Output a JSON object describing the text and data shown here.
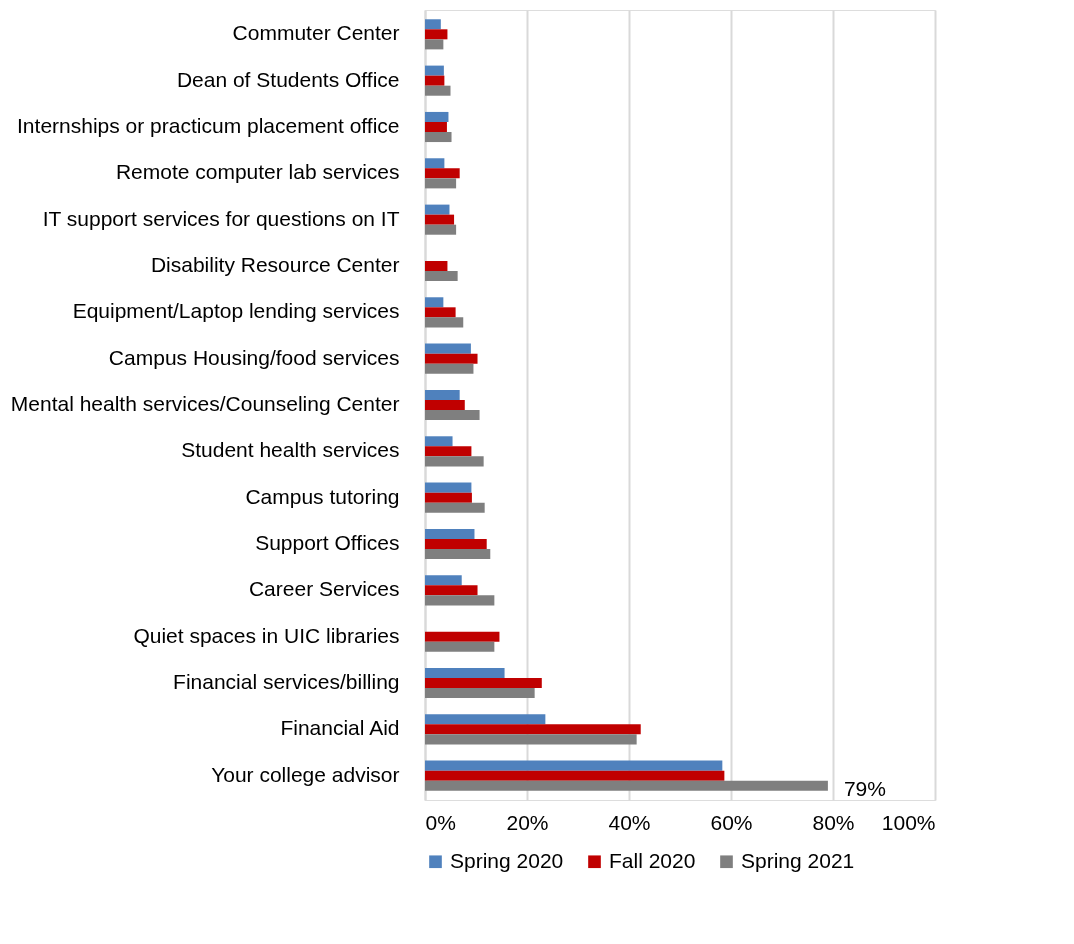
{
  "chart_data": {
    "type": "bar",
    "orientation": "horizontal",
    "categories": [
      "Commuter Center",
      "Dean of Students Office",
      "Internships or practicum placement office",
      "Remote computer lab services ",
      "IT support services for questions on IT",
      "Disability Resource Center",
      "Equipment/Laptop lending services",
      "Campus Housing/food services",
      "Mental health services/Counseling Center",
      "Student health services",
      "Campus tutoring",
      "Support Offices",
      "Career Services",
      "Quiet spaces in UIC libraries",
      "Financial services/billing",
      "Financial Aid",
      "Your college advisor"
    ],
    "series": [
      {
        "name": "Spring 2020",
        "color": "#4f81bd",
        "values": [
          3.1,
          3.7,
          4.6,
          3.8,
          4.8,
          null,
          3.6,
          9.0,
          6.8,
          5.4,
          9.1,
          9.7,
          7.2,
          null,
          15.6,
          23.6,
          58.3
        ]
      },
      {
        "name": "Fall 2020",
        "color": "#c00000",
        "values": [
          4.4,
          3.8,
          4.3,
          6.8,
          5.7,
          4.4,
          6.0,
          10.3,
          7.8,
          9.1,
          9.2,
          12.1,
          10.3,
          14.6,
          22.9,
          42.3,
          58.7
        ]
      },
      {
        "name": "Spring 2021",
        "color": "#7f7f7f",
        "values": [
          3.6,
          5.0,
          5.2,
          6.1,
          6.1,
          6.4,
          7.5,
          9.5,
          10.7,
          11.5,
          11.7,
          12.8,
          13.6,
          13.6,
          21.5,
          41.5,
          79
        ],
        "value_labels": [
          null,
          null,
          null,
          null,
          null,
          null,
          null,
          null,
          null,
          null,
          null,
          null,
          null,
          null,
          null,
          null,
          "79%"
        ]
      }
    ],
    "xlim": [
      0,
      100
    ],
    "xticks": [
      {
        "value": 0,
        "label": "0%"
      },
      {
        "value": 20,
        "label": "20%"
      },
      {
        "value": 40,
        "label": "40%"
      },
      {
        "value": 60,
        "label": "60%"
      },
      {
        "value": 80,
        "label": "80%"
      },
      {
        "value": 100,
        "label": "100%"
      }
    ],
    "grid": "x",
    "legend": "bottom"
  }
}
